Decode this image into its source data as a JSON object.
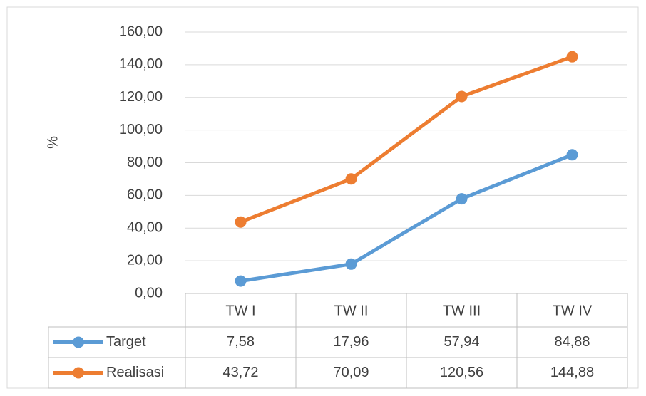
{
  "chart_data": {
    "type": "line",
    "y_label": "%",
    "categories": [
      "TW I",
      "TW II",
      "TW III",
      "TW IV"
    ],
    "series": [
      {
        "name": "Target",
        "color": "#5b9bd5",
        "values": [
          7.58,
          17.96,
          57.94,
          84.88
        ],
        "value_labels": [
          "7,58",
          "17,96",
          "57,94",
          "84,88"
        ]
      },
      {
        "name": "Realisasi",
        "color": "#ed7d31",
        "values": [
          43.72,
          70.09,
          120.56,
          144.88
        ],
        "value_labels": [
          "43,72",
          "70,09",
          "120,56",
          "144,88"
        ]
      }
    ],
    "ylim": [
      0,
      160
    ],
    "yticks": [
      {
        "value": 0,
        "label": "0,00"
      },
      {
        "value": 20,
        "label": "20,00"
      },
      {
        "value": 40,
        "label": "40,00"
      },
      {
        "value": 60,
        "label": "60,00"
      },
      {
        "value": 80,
        "label": "80,00"
      },
      {
        "value": 100,
        "label": "100,00"
      },
      {
        "value": 120,
        "label": "120,00"
      },
      {
        "value": 140,
        "label": "140,00"
      },
      {
        "value": 160,
        "label": "160,00"
      }
    ],
    "grid": true,
    "data_table": true
  }
}
